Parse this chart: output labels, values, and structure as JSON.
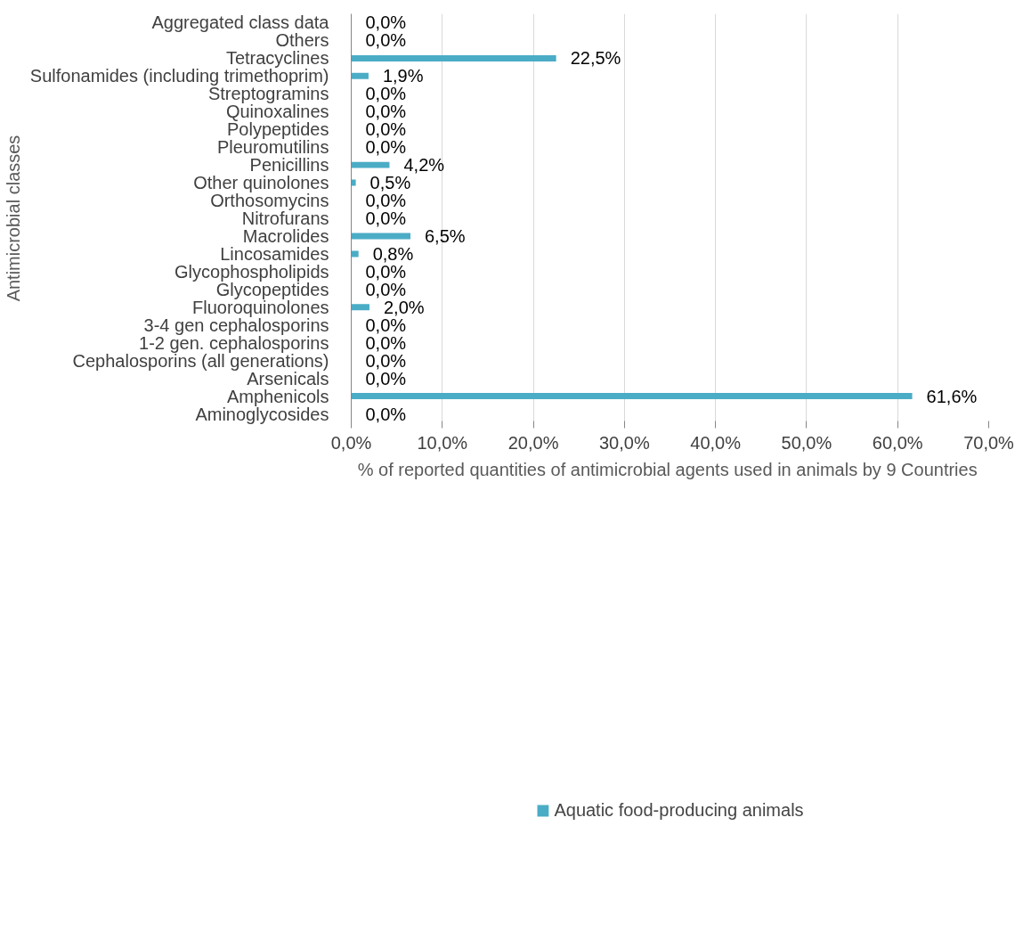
{
  "chart_data": {
    "type": "bar",
    "orientation": "horizontal",
    "categories": [
      "Aggregated class data",
      "Others",
      "Tetracyclines",
      "Sulfonamides (including trimethoprim)",
      "Streptogramins",
      "Quinoxalines",
      "Polypeptides",
      "Pleuromutilins",
      "Penicillins",
      "Other quinolones",
      "Orthosomycins",
      "Nitrofurans",
      "Macrolides",
      "Lincosamides",
      "Glycophospholipids",
      "Glycopeptides",
      "Fluoroquinolones",
      "3-4 gen cephalosporins",
      "1-2 gen. cephalosporins",
      "Cephalosporins (all generations)",
      "Arsenicals",
      "Amphenicols",
      "Aminoglycosides"
    ],
    "series": [
      {
        "name": "Aquatic food-producing animals",
        "color": "#4bacc6",
        "values": [
          0.0,
          0.0,
          22.5,
          1.9,
          0.0,
          0.0,
          0.0,
          0.0,
          4.2,
          0.5,
          0.0,
          0.0,
          6.5,
          0.8,
          0.0,
          0.0,
          2.0,
          0.0,
          0.0,
          0.0,
          0.0,
          61.6,
          0.0
        ],
        "value_labels": [
          "0,0%",
          "0,0%",
          "22,5%",
          "1,9%",
          "0,0%",
          "0,0%",
          "0,0%",
          "0,0%",
          "4,2%",
          "0,5%",
          "0,0%",
          "0,0%",
          "6,5%",
          "0,8%",
          "0,0%",
          "0,0%",
          "2,0%",
          "0,0%",
          "0,0%",
          "0,0%",
          "0,0%",
          "61,6%",
          "0,0%"
        ]
      }
    ],
    "xlim": [
      0,
      70
    ],
    "xticks": [
      {
        "value": 0,
        "label": "0,0%"
      },
      {
        "value": 10,
        "label": "10,0%"
      },
      {
        "value": 20,
        "label": "20,0%"
      },
      {
        "value": 30,
        "label": "30,0%"
      },
      {
        "value": 40,
        "label": "40,0%"
      },
      {
        "value": 50,
        "label": "50,0%"
      },
      {
        "value": 60,
        "label": "60,0%"
      },
      {
        "value": 70,
        "label": "70,0%"
      }
    ],
    "xlabel": "% of reported quantities of antimicrobial agents used in animals by  9 Countries",
    "ylabel": "Antimicrobial classes",
    "grid": "x",
    "legend": "bottom"
  }
}
